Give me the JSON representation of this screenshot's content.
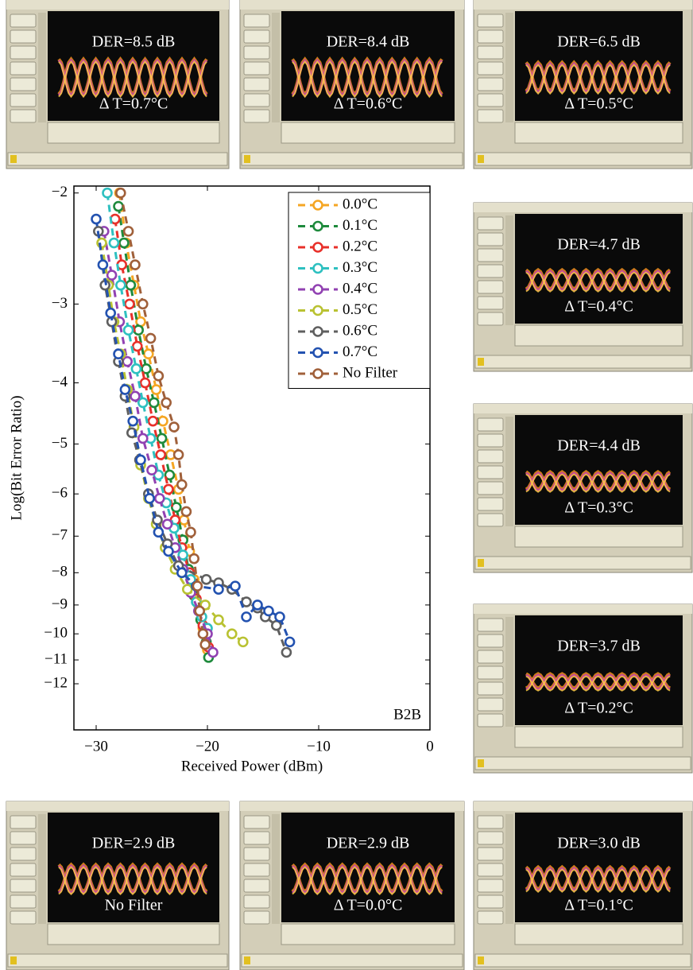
{
  "chart_data": {
    "type": "line",
    "xlabel": "Received Power (dBm)",
    "ylabel": "Log(Bit Error Ratio)",
    "annotation": "B2B",
    "xlim": [
      -32,
      0
    ],
    "xticks": [
      {
        "value": -30,
        "label": "−30"
      },
      {
        "value": -20,
        "label": "−20"
      },
      {
        "value": -10,
        "label": "−10"
      },
      0
    ],
    "ylim": [
      -1.95,
      -14.2
    ],
    "yscale": "log-negative",
    "yticks": [
      {
        "value": -2,
        "label": "−2"
      },
      {
        "value": -3,
        "label": "−3"
      },
      {
        "value": -4,
        "label": "−4"
      },
      {
        "value": -5,
        "label": "−5"
      },
      {
        "value": -6,
        "label": "−6"
      },
      {
        "value": -7,
        "label": "−7"
      },
      {
        "value": -8,
        "label": "−8"
      },
      {
        "value": -9,
        "label": "−9"
      },
      {
        "value": -10,
        "label": "−10"
      },
      {
        "value": -11,
        "label": "−11"
      },
      {
        "value": -12,
        "label": "−12"
      }
    ],
    "legend": "upper right",
    "series": [
      {
        "name": "0.0°C",
        "color": "#f5a623",
        "x": [
          -27.9,
          -27.3,
          -26.6,
          -26.0,
          -25.3,
          -24.6,
          -24.0,
          -23.3,
          -22.6,
          -22.1,
          -21.6,
          -21.2,
          -20.8,
          -20.4,
          -20.0
        ],
        "values": [
          -2.0,
          -2.4,
          -2.8,
          -3.2,
          -3.6,
          -4.1,
          -4.6,
          -5.2,
          -5.9,
          -6.6,
          -7.4,
          -8.2,
          -9.0,
          -9.8,
          -10.6
        ]
      },
      {
        "name": "0.1°C",
        "color": "#1e8a3c",
        "x": [
          -28.0,
          -27.5,
          -26.9,
          -26.2,
          -25.5,
          -24.8,
          -24.1,
          -23.4,
          -22.8,
          -22.2,
          -21.7,
          -21.2,
          -20.6,
          -20.1,
          -19.9
        ],
        "values": [
          -2.1,
          -2.4,
          -2.8,
          -3.3,
          -3.8,
          -4.3,
          -4.9,
          -5.6,
          -6.3,
          -7.1,
          -7.9,
          -8.7,
          -9.5,
          -10.3,
          -10.9
        ]
      },
      {
        "name": "0.2°C",
        "color": "#e8302a",
        "x": [
          -28.3,
          -27.7,
          -27.0,
          -26.3,
          -25.6,
          -24.9,
          -24.2,
          -23.5,
          -22.9,
          -22.3,
          -21.6,
          -21.0,
          -20.4,
          -19.9
        ],
        "values": [
          -2.2,
          -2.6,
          -3.0,
          -3.5,
          -4.0,
          -4.6,
          -5.2,
          -5.9,
          -6.6,
          -7.3,
          -8.0,
          -8.8,
          -9.7,
          -10.5
        ]
      },
      {
        "name": "0.3°C",
        "color": "#2ec0c0",
        "x": [
          -29.0,
          -28.4,
          -27.8,
          -27.1,
          -26.4,
          -25.8,
          -25.1,
          -24.4,
          -23.7,
          -23.0,
          -22.2,
          -21.5,
          -21.0,
          -20.5,
          -20.0
        ],
        "values": [
          -2.0,
          -2.4,
          -2.8,
          -3.3,
          -3.8,
          -4.3,
          -4.9,
          -5.6,
          -6.2,
          -6.8,
          -7.5,
          -8.2,
          -8.9,
          -9.4,
          -9.8
        ]
      },
      {
        "name": "0.4°C",
        "color": "#9142b2",
        "x": [
          -29.3,
          -28.6,
          -27.9,
          -27.2,
          -26.5,
          -25.8,
          -25.0,
          -24.3,
          -23.6,
          -22.9,
          -22.2,
          -21.5,
          -20.8,
          -20.0,
          -19.5
        ],
        "values": [
          -2.3,
          -2.7,
          -3.2,
          -3.7,
          -4.2,
          -4.9,
          -5.5,
          -6.1,
          -6.7,
          -7.3,
          -7.9,
          -8.6,
          -9.2,
          -10.0,
          -10.7
        ]
      },
      {
        "name": "0.5°C",
        "color": "#b9c232",
        "x": [
          -29.5,
          -28.9,
          -28.4,
          -27.8,
          -27.2,
          -26.6,
          -26.0,
          -25.3,
          -24.6,
          -23.8,
          -22.9,
          -21.8,
          -20.2,
          -19.0,
          -17.8,
          -16.8
        ],
        "values": [
          -2.4,
          -2.8,
          -3.2,
          -3.6,
          -4.1,
          -4.7,
          -5.4,
          -6.1,
          -6.7,
          -7.3,
          -7.9,
          -8.5,
          -9.0,
          -9.5,
          -10.0,
          -10.3
        ]
      },
      {
        "name": "0.6°C",
        "color": "#5f5f5f",
        "x": [
          -29.8,
          -29.2,
          -28.6,
          -28.0,
          -27.4,
          -26.8,
          -26.1,
          -25.3,
          -24.5,
          -23.6,
          -22.6,
          -20.1,
          -19.0,
          -17.8,
          -16.5,
          -15.5,
          -14.8,
          -13.8,
          -12.9
        ],
        "values": [
          -2.3,
          -2.8,
          -3.2,
          -3.7,
          -4.2,
          -4.8,
          -5.3,
          -6.0,
          -6.6,
          -7.2,
          -7.8,
          -8.2,
          -8.3,
          -8.5,
          -8.9,
          -9.1,
          -9.4,
          -9.7,
          -10.7
        ]
      },
      {
        "name": "0.7°C",
        "color": "#2352b0",
        "x": [
          -30.0,
          -29.4,
          -28.7,
          -28.0,
          -27.4,
          -26.7,
          -26.0,
          -25.2,
          -24.4,
          -23.5,
          -22.3,
          -21.0,
          -19.0,
          -17.5,
          -16.5,
          -15.5,
          -14.5,
          -13.5,
          -12.6
        ],
        "values": [
          -2.2,
          -2.6,
          -3.1,
          -3.6,
          -4.1,
          -4.6,
          -5.3,
          -6.1,
          -6.9,
          -7.4,
          -8.0,
          -8.4,
          -8.5,
          -8.4,
          -9.4,
          -9.0,
          -9.2,
          -9.4,
          -10.3
        ]
      },
      {
        "name": "No Filter",
        "color": "#a0603a",
        "x": [
          -27.8,
          -27.1,
          -26.5,
          -25.8,
          -25.1,
          -24.4,
          -23.7,
          -23.0,
          -22.6,
          -22.3,
          -21.9,
          -21.5,
          -21.2,
          -20.9,
          -20.7,
          -20.4,
          -20.2
        ],
        "values": [
          -2.0,
          -2.3,
          -2.6,
          -3.0,
          -3.4,
          -3.9,
          -4.3,
          -4.7,
          -5.2,
          -5.8,
          -6.4,
          -6.9,
          -7.6,
          -8.4,
          -9.2,
          -10.0,
          -10.4
        ]
      }
    ]
  },
  "panels": [
    {
      "der": "DER=8.5 dB",
      "condition": "Δ T=0.7°C"
    },
    {
      "der": "DER=8.4 dB",
      "condition": "Δ T=0.6°C"
    },
    {
      "der": "DER=6.5 dB",
      "condition": "Δ T=0.5°C"
    },
    {
      "der": "DER=4.7 dB",
      "condition": "Δ T=0.4°C"
    },
    {
      "der": "DER=4.4 dB",
      "condition": "Δ T=0.3°C"
    },
    {
      "der": "DER=3.7 dB",
      "condition": "Δ T=0.2°C"
    },
    {
      "der": "DER=2.9 dB",
      "condition": "No Filter"
    },
    {
      "der": "DER=2.9 dB",
      "condition": "Δ T=0.0°C"
    },
    {
      "der": "DER=3.0 dB",
      "condition": "Δ T=0.1°C"
    }
  ]
}
